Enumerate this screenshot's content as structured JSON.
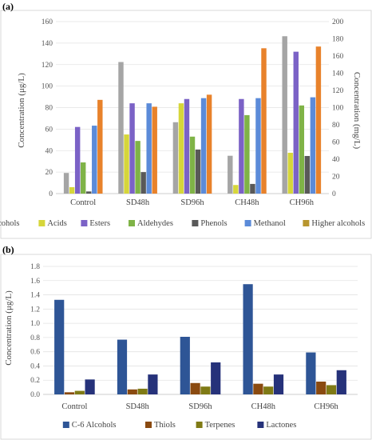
{
  "chart_data": [
    {
      "panel_label": "(a)",
      "type": "bar",
      "categories": [
        "Control",
        "SD48h",
        "SD96h",
        "CH48h",
        "CH96h"
      ],
      "ylabel": "Concentration (μg/L)",
      "y2label": "Concentration (mg/L)",
      "ylim": [
        0,
        160
      ],
      "y2lim": [
        0,
        200
      ],
      "yticks": [
        "0",
        "20",
        "40",
        "60",
        "80",
        "100",
        "120",
        "140",
        "160"
      ],
      "y2ticks": [
        "0",
        "20",
        "40",
        "60",
        "80",
        "100",
        "120",
        "140",
        "160",
        "180",
        "200"
      ],
      "grid": true,
      "legend_position": "bottom",
      "series": [
        {
          "name": "Alcohols",
          "color": "#a5a5a5",
          "axis": "secondary",
          "values": [
            24,
            153,
            83,
            44,
            183
          ]
        },
        {
          "name": "Acids",
          "color": "#d6d63a",
          "axis": "primary",
          "values": [
            6,
            55,
            84,
            8,
            38
          ]
        },
        {
          "name": "Esters",
          "color": "#7b62c6",
          "axis": "primary",
          "values": [
            62,
            84,
            88,
            88,
            132
          ]
        },
        {
          "name": "Aldehydes",
          "color": "#7fb347",
          "axis": "primary",
          "values": [
            29,
            49,
            53,
            73,
            82
          ]
        },
        {
          "name": "Phenols",
          "color": "#595959",
          "axis": "primary",
          "values": [
            2,
            20,
            41,
            9,
            35
          ]
        },
        {
          "name": "Methanol",
          "color": "#5b8bd9",
          "axis": "secondary",
          "values": [
            79,
            105,
            111,
            111,
            112
          ]
        },
        {
          "name": "Higher alcohols",
          "color": "#e8822b",
          "color_legend": "#b8962e",
          "axis": "secondary",
          "values": [
            109,
            101,
            115,
            169,
            171
          ]
        }
      ]
    },
    {
      "panel_label": "(b)",
      "type": "bar",
      "categories": [
        "Control",
        "SD48h",
        "SD96h",
        "CH48h",
        "CH96h"
      ],
      "ylabel": "Concentration (μg/L)",
      "ylim": [
        0,
        1.8
      ],
      "yticks": [
        "0.0",
        "0.2",
        "0.4",
        "0.6",
        "0.8",
        "1.0",
        "1.2",
        "1.4",
        "1.6",
        "1.8"
      ],
      "grid": true,
      "legend_position": "bottom",
      "series": [
        {
          "name": "C-6 Alcohols",
          "color": "#2e5596",
          "values": [
            1.33,
            0.77,
            0.81,
            1.55,
            0.59
          ]
        },
        {
          "name": "Thiols",
          "color": "#8a4a10",
          "values": [
            0.03,
            0.07,
            0.16,
            0.15,
            0.18
          ]
        },
        {
          "name": "Terpenes",
          "color": "#7f7a15",
          "values": [
            0.05,
            0.08,
            0.11,
            0.11,
            0.13
          ]
        },
        {
          "name": "Lactones",
          "color": "#26327a",
          "values": [
            0.21,
            0.28,
            0.45,
            0.28,
            0.34
          ]
        }
      ]
    }
  ]
}
